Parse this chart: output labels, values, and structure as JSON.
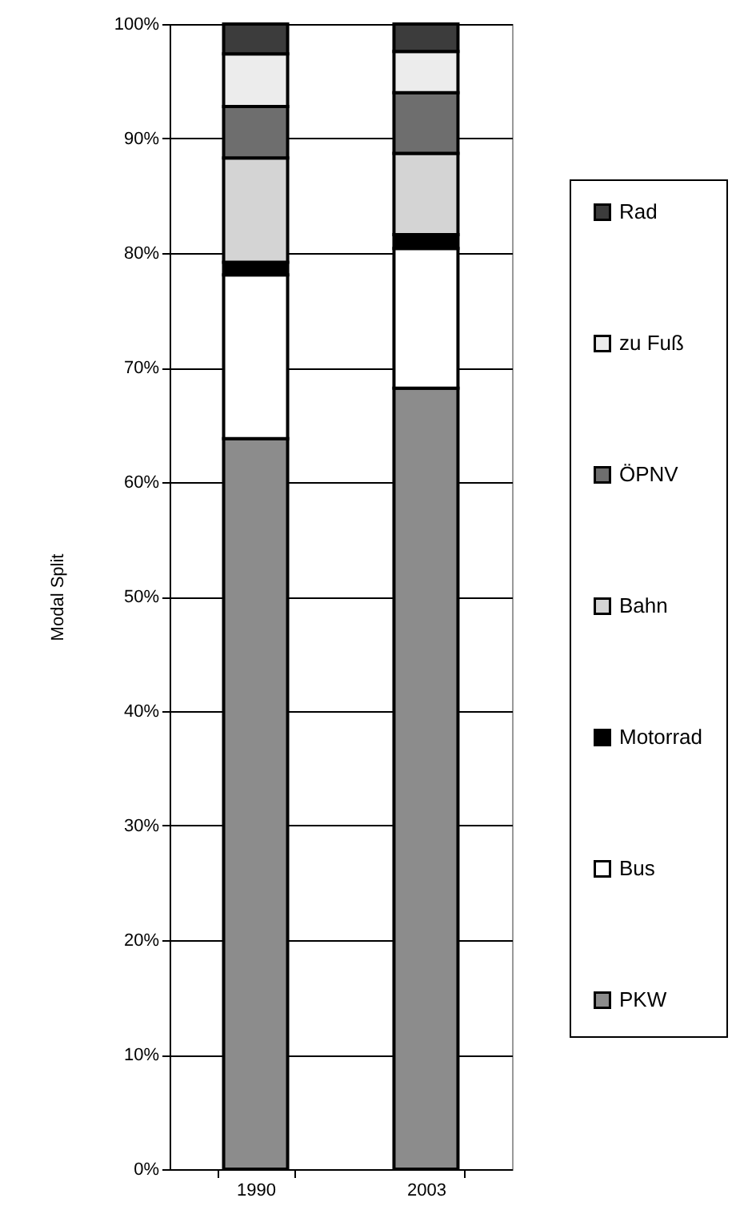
{
  "chart_data": {
    "type": "bar",
    "stacked": true,
    "ylabel": "Modal Split",
    "categories": [
      "1990",
      "2003"
    ],
    "series": [
      {
        "name": "PKW",
        "color": "#8c8c8c",
        "values": [
          63.8,
          68.2
        ]
      },
      {
        "name": "Bus",
        "color": "#ffffff",
        "values": [
          14.3,
          12.2
        ]
      },
      {
        "name": "Motorrad",
        "color": "#000000",
        "values": [
          1.1,
          1.2
        ]
      },
      {
        "name": "Bahn",
        "color": "#d4d4d4",
        "values": [
          9.1,
          7.1
        ]
      },
      {
        "name": "ÖPNV",
        "color": "#6e6e6e",
        "values": [
          4.5,
          5.3
        ]
      },
      {
        "name": "zu Fuß",
        "color": "#ececec",
        "values": [
          4.6,
          3.6
        ]
      },
      {
        "name": "Rad",
        "color": "#3c3c3c",
        "values": [
          2.6,
          2.4
        ]
      }
    ],
    "ylim": [
      0,
      100
    ],
    "yticks": [
      {
        "value": 0,
        "label": "0%"
      },
      {
        "value": 10,
        "label": "10%"
      },
      {
        "value": 20,
        "label": "20%"
      },
      {
        "value": 30,
        "label": "30%"
      },
      {
        "value": 40,
        "label": "40%"
      },
      {
        "value": 50,
        "label": "50%"
      },
      {
        "value": 60,
        "label": "60%"
      },
      {
        "value": 70,
        "label": "70%"
      },
      {
        "value": 80,
        "label": "80%"
      },
      {
        "value": 90,
        "label": "90%"
      },
      {
        "value": 100,
        "label": "100%"
      }
    ],
    "grid": "y",
    "legend": "right"
  }
}
